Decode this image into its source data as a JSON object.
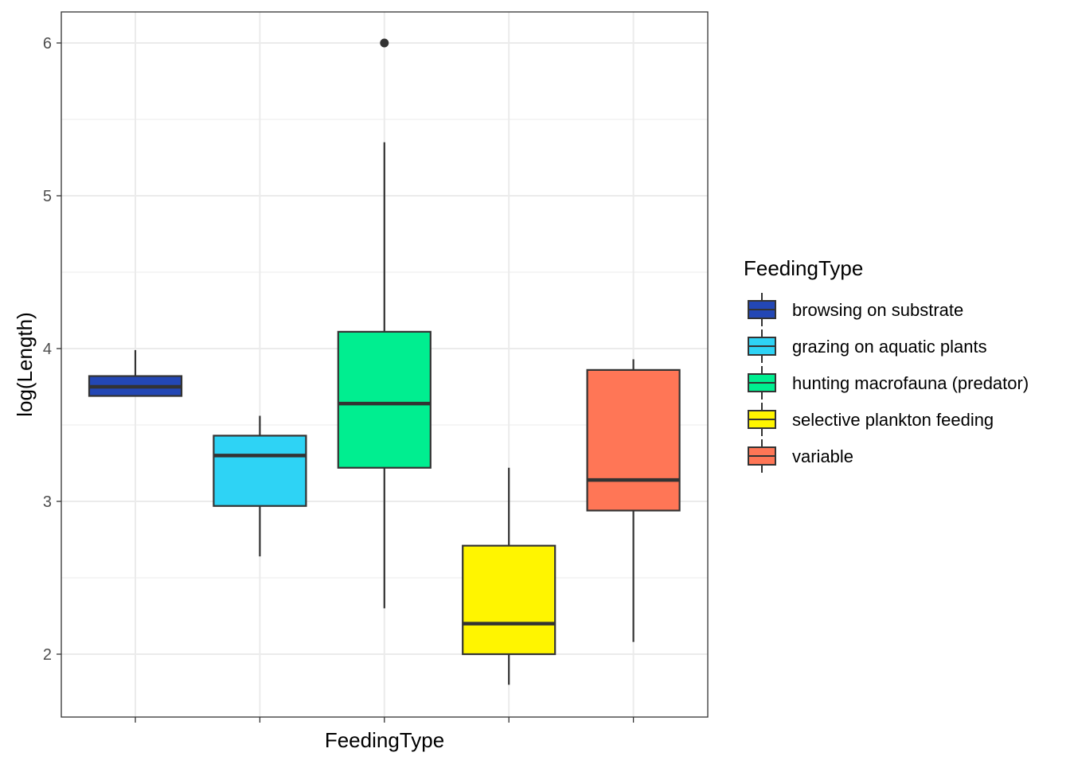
{
  "chart_data": {
    "type": "boxplot",
    "xlabel": "FeedingType",
    "ylabel": "log(Length)",
    "ylim": [
      1.6,
      6.2
    ],
    "yticks": [
      2,
      3,
      4,
      5,
      6
    ],
    "grid": true,
    "legend": {
      "title": "FeedingType",
      "placement": "right"
    },
    "series": [
      {
        "name": "browsing on substrate",
        "color": "#2347B5",
        "whisker_low": 3.69,
        "q1": 3.69,
        "median": 3.75,
        "q3": 3.82,
        "whisker_high": 3.99,
        "outliers": []
      },
      {
        "name": "grazing on aquatic plants",
        "color": "#2ED3F5",
        "whisker_low": 2.64,
        "q1": 2.97,
        "median": 3.3,
        "q3": 3.43,
        "whisker_high": 3.56,
        "outliers": []
      },
      {
        "name": "hunting macrofauna (predator)",
        "color": "#00EE90",
        "whisker_low": 2.3,
        "q1": 3.22,
        "median": 3.64,
        "q3": 4.11,
        "whisker_high": 5.35,
        "outliers": [
          6.0
        ]
      },
      {
        "name": "selective plankton feeding",
        "color": "#FFF500",
        "whisker_low": 1.8,
        "q1": 2.0,
        "median": 2.2,
        "q3": 2.71,
        "whisker_high": 3.22,
        "outliers": []
      },
      {
        "name": "variable",
        "color": "#FF7656",
        "whisker_low": 2.08,
        "q1": 2.94,
        "median": 3.14,
        "q3": 3.86,
        "whisker_high": 3.93,
        "outliers": []
      }
    ]
  }
}
